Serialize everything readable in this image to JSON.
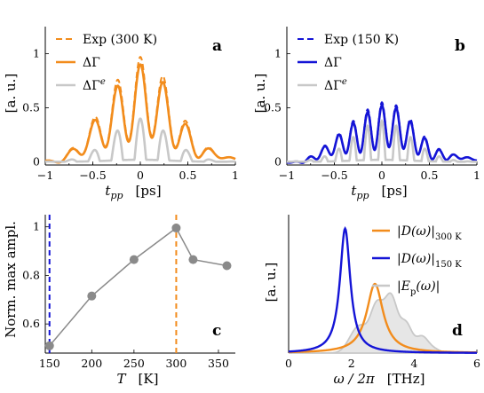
{
  "colors": {
    "orange": "#f28c1c",
    "blue": "#1414d6",
    "gray": "#c8c8c8",
    "grayfill": "#e6e6e6",
    "marker": "#8a8a8a"
  },
  "chart_data": [
    {
      "type": "line",
      "panel": "a",
      "xlabel_sym": "t",
      "xlabel_sub": "pp",
      "xlabel_unit": "[ps]",
      "ylabel": "[a. u.]",
      "xlim": [
        -1,
        1
      ],
      "ylim": [
        -0.03,
        1.25
      ],
      "xticks": [
        "-1",
        "-0.5",
        "0",
        "0.5",
        "1"
      ],
      "yticks": [
        "0",
        "0.5",
        "1"
      ],
      "legend": [
        "Exp (300 K)",
        "ΔΓ",
        "ΔΓ"
      ],
      "legend_sup": [
        "",
        "",
        "e"
      ],
      "series": [
        {
          "name": "Exp (300 K)",
          "style": "dashed",
          "color": "orange",
          "amp": 0.97,
          "w0": 4.1,
          "sigma": 0.36,
          "offset": 0.25
        },
        {
          "name": "ΔΓ",
          "style": "solid",
          "color": "orange",
          "amp": 0.9,
          "w0": 4.1,
          "sigma": 0.36,
          "offset": 0.25
        },
        {
          "name": "ΔΓe",
          "style": "solid",
          "color": "gray",
          "amp": 0.38,
          "w0": 4.1,
          "sigma": 0.3,
          "offset": 0.0
        }
      ]
    },
    {
      "type": "line",
      "panel": "b",
      "xlabel_sym": "t",
      "xlabel_sub": "pp",
      "xlabel_unit": "[ps]",
      "ylabel": "[a. u.]",
      "xlim": [
        -1,
        1
      ],
      "ylim": [
        -0.03,
        1.25
      ],
      "xticks": [
        "-1",
        "-0.5",
        "0",
        "0.5",
        "1"
      ],
      "yticks": [
        "0",
        "0.5",
        "1"
      ],
      "legend": [
        "Exp (150 K)",
        "ΔΓ",
        "ΔΓ"
      ],
      "legend_sup": [
        "",
        "",
        "e"
      ],
      "series": [
        {
          "name": "Exp (150 K)",
          "style": "dashed",
          "color": "blue",
          "amp": 0.55,
          "w0": 6.6,
          "sigma": 0.36,
          "offset": 0.25
        },
        {
          "name": "ΔΓ",
          "style": "solid",
          "color": "blue",
          "amp": 0.52,
          "w0": 6.6,
          "sigma": 0.36,
          "offset": 0.25
        },
        {
          "name": "ΔΓe",
          "style": "solid",
          "color": "gray",
          "amp": 0.36,
          "w0": 6.6,
          "sigma": 0.3,
          "offset": 0.0
        }
      ]
    },
    {
      "type": "scatter",
      "panel": "c",
      "xlabel_sym": "T",
      "xlabel_unit": "[K]",
      "ylabel": "Norm. max ampl.",
      "xlim": [
        145,
        370
      ],
      "ylim": [
        0.48,
        1.05
      ],
      "xticks": [
        "150",
        "200",
        "250",
        "300",
        "350"
      ],
      "yticks": [
        "0.6",
        "0.8",
        "1"
      ],
      "x": [
        150,
        200,
        250,
        300,
        320,
        360
      ],
      "y": [
        0.51,
        0.715,
        0.865,
        0.995,
        0.865,
        0.84
      ],
      "vlines": [
        {
          "x": 150,
          "color": "blue"
        },
        {
          "x": 300,
          "color": "orange"
        }
      ]
    },
    {
      "type": "line",
      "panel": "d",
      "xlabel_sym": "ω / 2π",
      "xlabel_unit": "[THz]",
      "ylabel": "[a. u.]",
      "xlim": [
        0,
        6
      ],
      "xticks": [
        "0",
        "2",
        "4",
        "6"
      ],
      "legend": [
        "|D(ω)|",
        "|D(ω)|",
        "|E"
      ],
      "legend_sub": [
        "300 K",
        "150 K",
        "p"
      ],
      "legend_tail": [
        "",
        "",
        "(ω)|"
      ],
      "series": [
        {
          "name": "|D(ω)| 300 K",
          "color": "orange",
          "peak": 2.75,
          "height": 0.5
        },
        {
          "name": "|D(ω)| 150 K",
          "color": "blue",
          "peak": 1.8,
          "height": 0.9
        },
        {
          "name": "|Ep(ω)|",
          "color": "gray",
          "peak": 3.1,
          "height": 0.52
        }
      ]
    }
  ]
}
